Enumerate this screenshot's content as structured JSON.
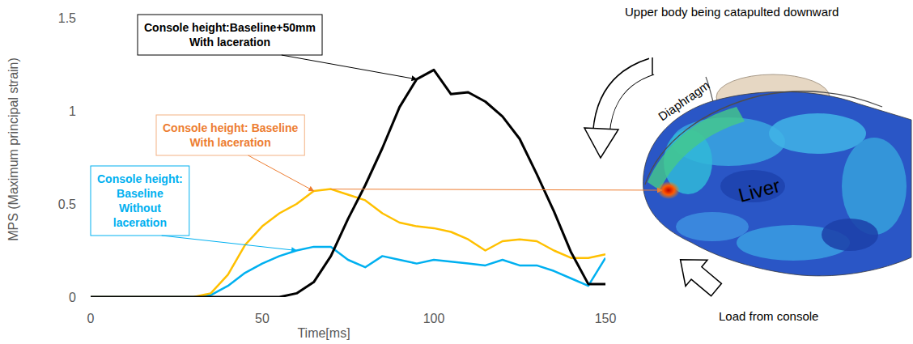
{
  "chart_data": {
    "type": "line",
    "x_label": "Time[ms]",
    "y_label": "MPS (Maximum principal strain)",
    "x": [
      0,
      5,
      10,
      15,
      20,
      25,
      30,
      35,
      40,
      45,
      50,
      55,
      60,
      65,
      70,
      75,
      80,
      85,
      90,
      95,
      100,
      105,
      110,
      115,
      120,
      125,
      130,
      135,
      140,
      145,
      150
    ],
    "xlim": [
      0,
      150
    ],
    "xticks": [
      0,
      50,
      100,
      150
    ],
    "ylim": [
      0,
      1.5
    ],
    "yticks": [
      0,
      0.5,
      1,
      1.5
    ],
    "grid": false,
    "series": [
      {
        "name": "Console height:Baseline+50mm With laceration",
        "color": "#000000",
        "values": [
          0,
          0,
          0,
          0,
          0,
          0,
          0,
          0,
          0,
          0,
          0,
          0,
          0.02,
          0.08,
          0.22,
          0.42,
          0.6,
          0.8,
          1.02,
          1.17,
          1.22,
          1.09,
          1.1,
          1.05,
          0.97,
          0.85,
          0.66,
          0.46,
          0.24,
          0.07,
          0.07
        ]
      },
      {
        "name": "Console height: Baseline With laceration",
        "color": "#ffc000",
        "values": [
          0,
          0,
          0,
          0,
          0,
          0,
          0,
          0.02,
          0.12,
          0.28,
          0.38,
          0.45,
          0.5,
          0.57,
          0.58,
          0.55,
          0.52,
          0.45,
          0.4,
          0.38,
          0.37,
          0.35,
          0.31,
          0.25,
          0.3,
          0.31,
          0.3,
          0.25,
          0.21,
          0.21,
          0.23
        ]
      },
      {
        "name": "Console height: Baseline Without laceration",
        "color": "#00b0f0",
        "values": [
          0,
          0,
          0,
          0,
          0,
          0,
          0,
          0.01,
          0.06,
          0.13,
          0.18,
          0.22,
          0.25,
          0.27,
          0.27,
          0.2,
          0.16,
          0.22,
          0.2,
          0.18,
          0.2,
          0.19,
          0.18,
          0.17,
          0.2,
          0.17,
          0.17,
          0.14,
          0.1,
          0.06,
          0.21
        ]
      }
    ]
  },
  "diagram": {
    "top_label": "Upper body being catapulted downward",
    "bottom_label": "Load from console",
    "organs": [
      "Diaphragm",
      "Liver"
    ]
  }
}
